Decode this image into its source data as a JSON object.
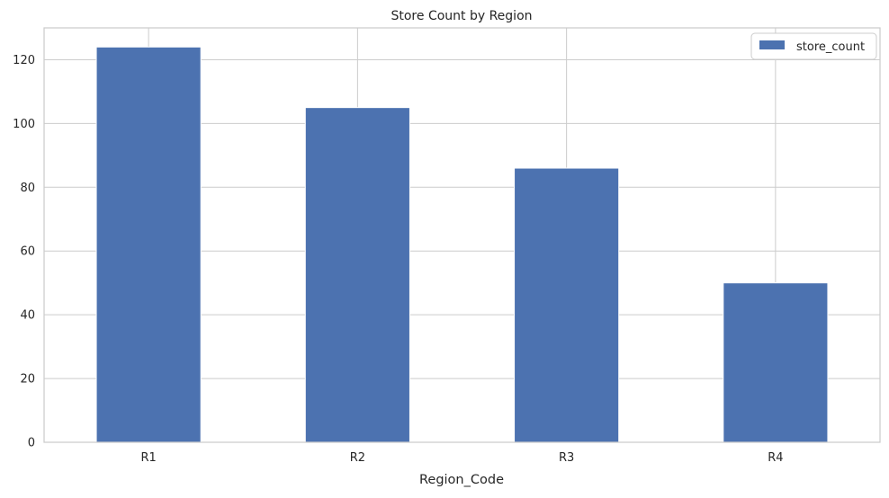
{
  "chart_data": {
    "type": "bar",
    "title": "Store Count by Region",
    "xlabel": "Region_Code",
    "ylabel": "",
    "categories": [
      "R1",
      "R2",
      "R3",
      "R4"
    ],
    "series": [
      {
        "name": "store_count",
        "values": [
          124,
          105,
          86,
          50
        ],
        "color": "#4c72b0"
      }
    ],
    "ylim": [
      0,
      130
    ],
    "yticks": [
      0,
      20,
      40,
      60,
      80,
      100,
      120
    ],
    "grid": true,
    "legend_position": "top-right",
    "colors": {
      "bar": "#4c72b0",
      "grid": "#cccccc",
      "frame": "#cccccc",
      "text": "#262626"
    }
  }
}
